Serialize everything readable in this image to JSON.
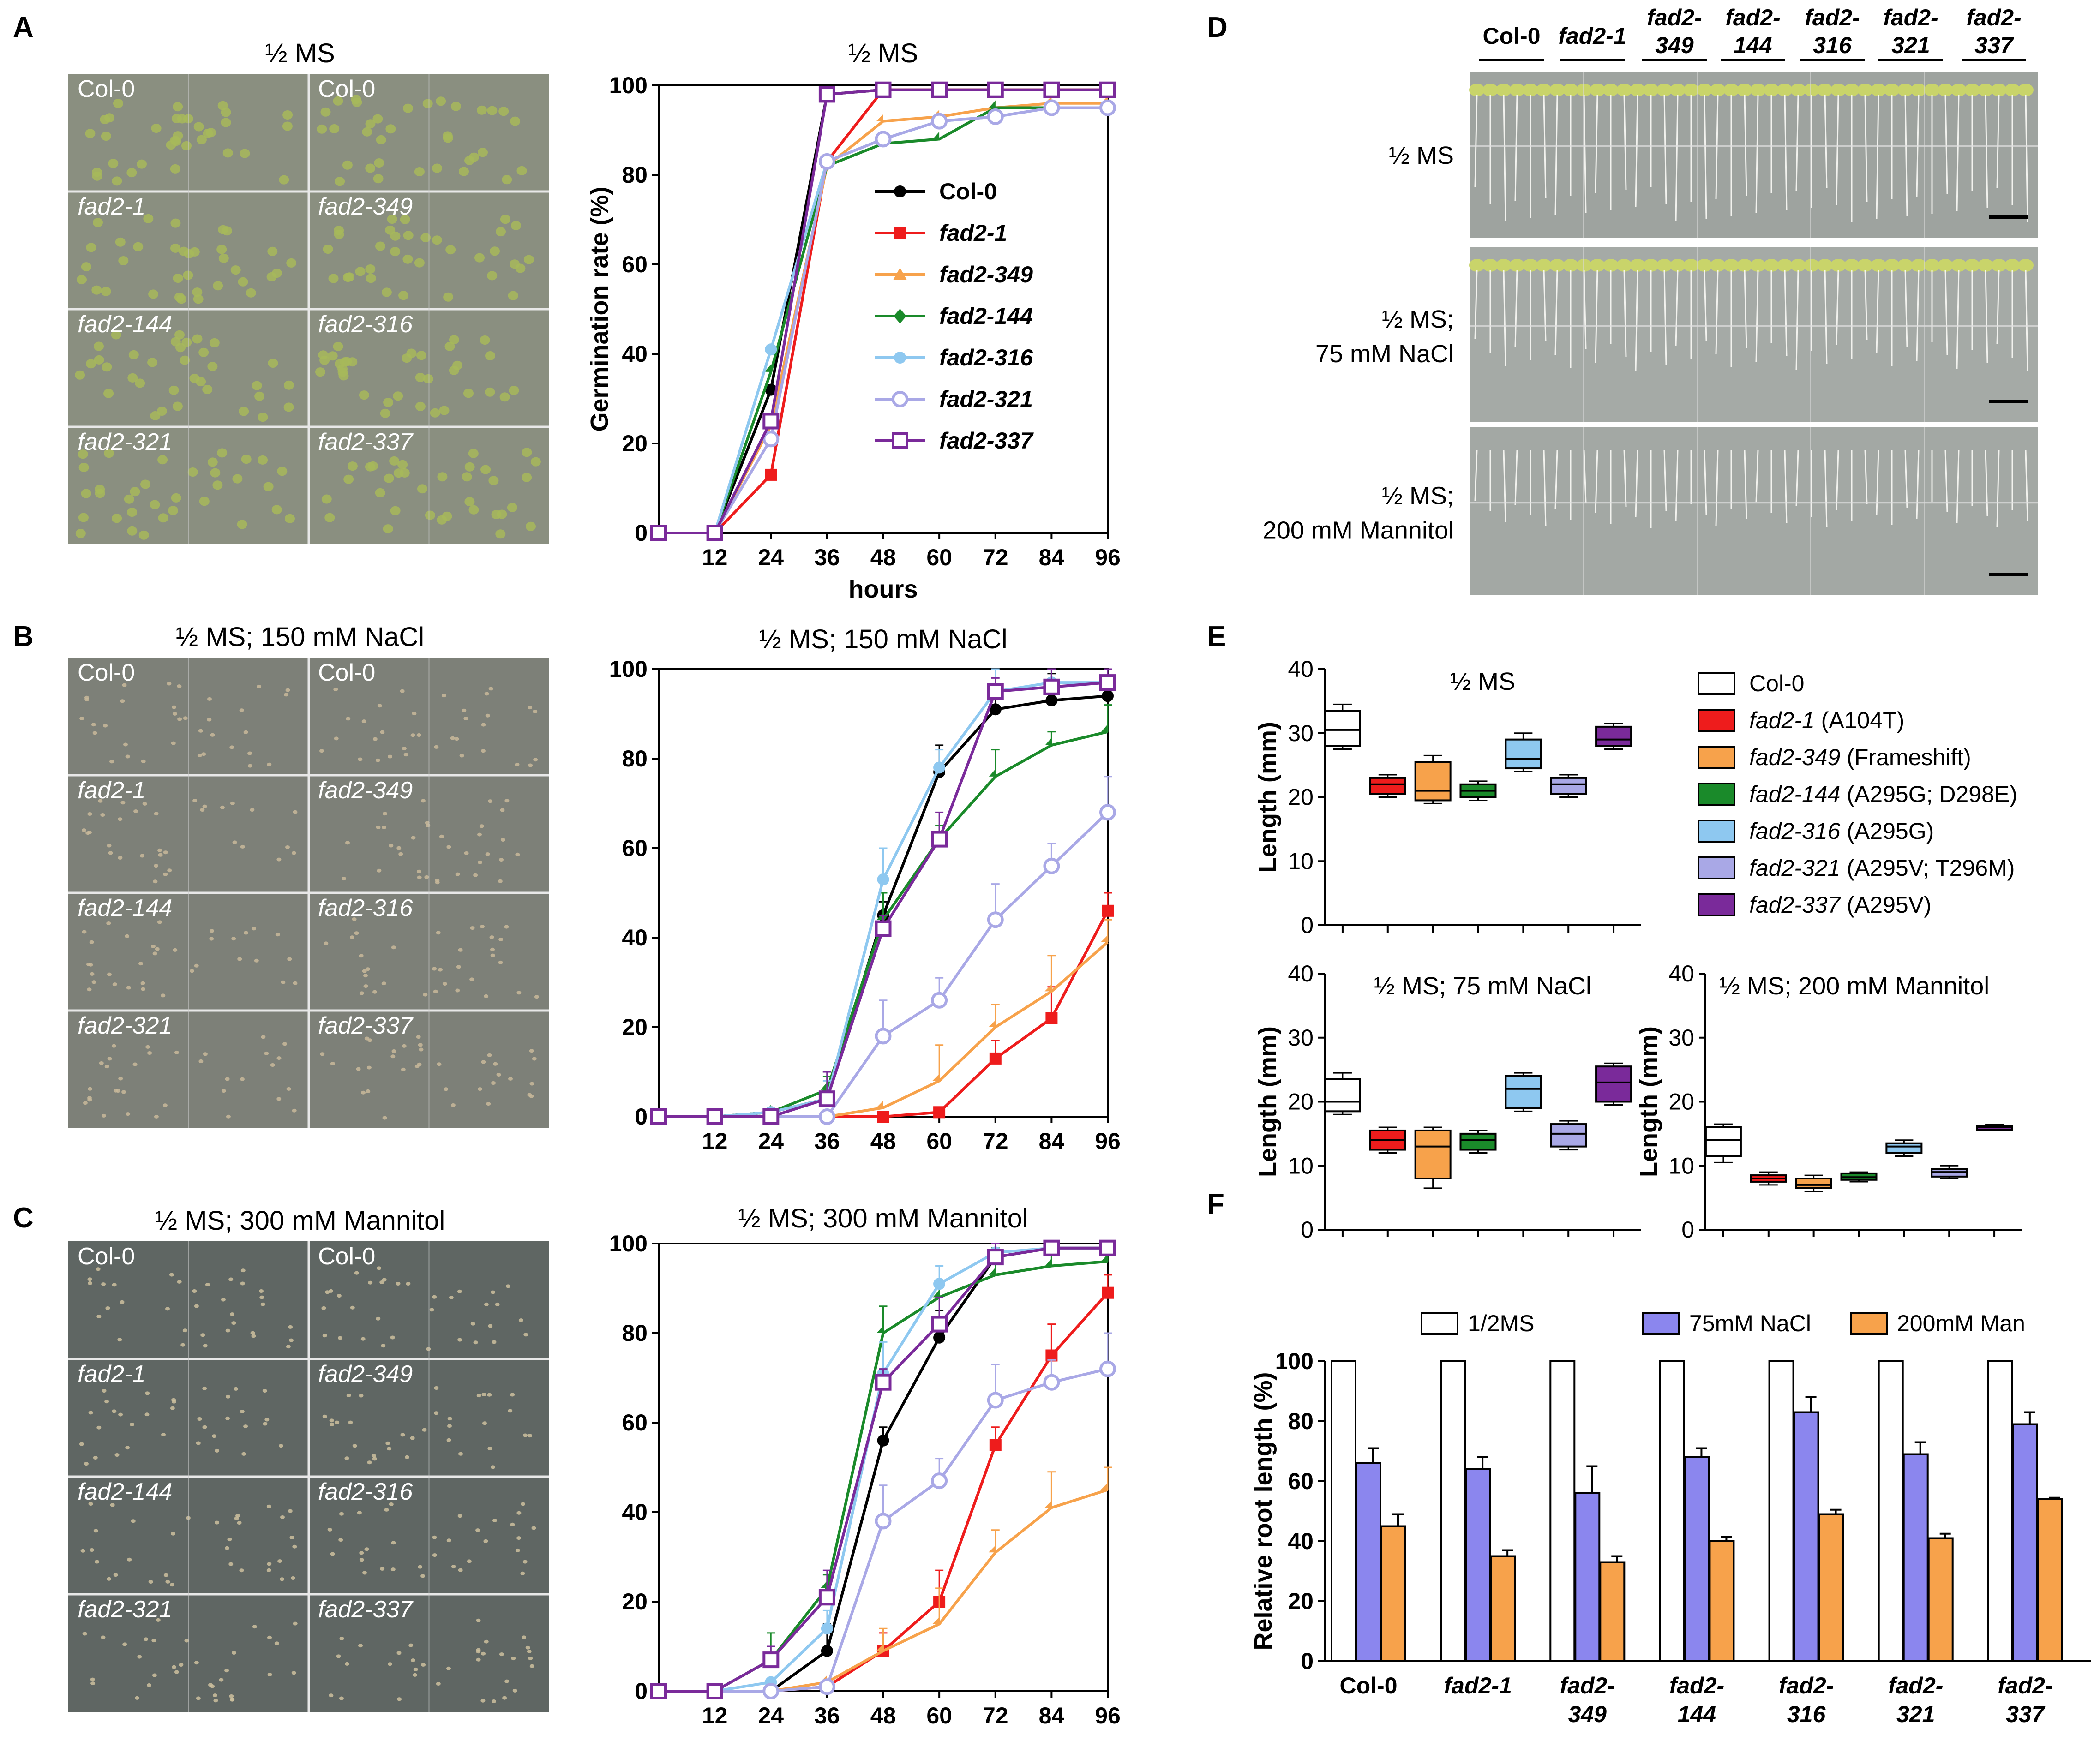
{
  "panel_labels": {
    "A": "A",
    "B": "B",
    "C": "C",
    "D": "D",
    "E": "E",
    "F": "F"
  },
  "photo_panels": [
    {
      "title": "½ MS",
      "bg": "#8a8f80",
      "cells": [
        "Col-0",
        "Col-0",
        "fad2-1",
        "fad2-349",
        "fad2-144",
        "fad2-316",
        "fad2-321",
        "fad2-337"
      ]
    },
    {
      "title": "½ MS; 150 mM NaCl",
      "bg": "#7d8078",
      "cells": [
        "Col-0",
        "Col-0",
        "fad2-1",
        "fad2-349",
        "fad2-144",
        "fad2-316",
        "fad2-321",
        "fad2-337"
      ]
    },
    {
      "title": "½ MS; 300 mM Mannitol",
      "bg": "#5f6663",
      "cells": [
        "Col-0",
        "Col-0",
        "fad2-1",
        "fad2-349",
        "fad2-144",
        "fad2-316",
        "fad2-321",
        "fad2-337"
      ]
    }
  ],
  "colors": {
    "Col-0": "#000000",
    "fad2-1": "#ee1c1c",
    "fad2-349": "#f7a24b",
    "fad2-144": "#1a8a2a",
    "fad2-316": "#8ec8f0",
    "fad2-321": "#a9a8e6",
    "fad2-337": "#7a2a9a",
    "bar_ms": "#ffffff",
    "bar_nacl": "#8b86ee",
    "bar_man": "#f7a24b"
  },
  "chart_data": [
    {
      "type": "line",
      "title": "½ MS",
      "xlabel": "hours",
      "ylabel": "Germination rate (%)",
      "x": [
        0,
        12,
        24,
        36,
        48,
        60,
        72,
        84,
        96
      ],
      "x_ticks": [
        "12",
        "24",
        "36",
        "48",
        "60",
        "72",
        "84",
        "96"
      ],
      "ylim": [
        0,
        100
      ],
      "y_ticks": [
        "0",
        "20",
        "40",
        "60",
        "80",
        "100"
      ],
      "series": [
        {
          "name": "Col-0",
          "marker": "circle",
          "values": [
            0,
            0,
            32,
            98,
            99,
            99,
            99,
            99,
            99
          ]
        },
        {
          "name": "fad2-1",
          "marker": "square",
          "values": [
            0,
            0,
            13,
            83,
            99,
            99,
            99,
            99,
            99
          ]
        },
        {
          "name": "fad2-349",
          "marker": "triangle",
          "values": [
            0,
            0,
            24,
            82,
            92,
            93,
            95,
            96,
            96
          ]
        },
        {
          "name": "fad2-144",
          "marker": "diamond",
          "values": [
            0,
            0,
            36,
            82,
            87,
            88,
            95,
            95,
            95
          ]
        },
        {
          "name": "fad2-316",
          "marker": "circle",
          "values": [
            0,
            0,
            41,
            83,
            88,
            92,
            93,
            95,
            95
          ]
        },
        {
          "name": "fad2-321",
          "marker": "open-circle",
          "values": [
            0,
            0,
            21,
            83,
            88,
            92,
            93,
            95,
            95
          ]
        },
        {
          "name": "fad2-337",
          "marker": "open-square",
          "values": [
            0,
            0,
            25,
            98,
            99,
            99,
            99,
            99,
            99
          ]
        }
      ]
    },
    {
      "type": "line",
      "title": "½ MS; 150 mM NaCl",
      "xlabel": "",
      "ylabel": "",
      "x": [
        0,
        12,
        24,
        36,
        48,
        60,
        72,
        84,
        96
      ],
      "x_ticks": [
        "12",
        "24",
        "36",
        "48",
        "60",
        "72",
        "84",
        "96"
      ],
      "ylim": [
        0,
        100
      ],
      "y_ticks": [
        "0",
        "20",
        "40",
        "60",
        "80",
        "100"
      ],
      "series": [
        {
          "name": "Col-0",
          "marker": "circle",
          "values": [
            0,
            0,
            1,
            4,
            45,
            77,
            91,
            93,
            94
          ]
        },
        {
          "name": "fad2-1",
          "marker": "square",
          "values": [
            0,
            0,
            0,
            0,
            0,
            1,
            13,
            22,
            46
          ]
        },
        {
          "name": "fad2-349",
          "marker": "triangle",
          "values": [
            0,
            0,
            0,
            0,
            2,
            8,
            20,
            28,
            39
          ]
        },
        {
          "name": "fad2-144",
          "marker": "diamond",
          "values": [
            0,
            0,
            1,
            6,
            44,
            62,
            76,
            83,
            86
          ]
        },
        {
          "name": "fad2-316",
          "marker": "circle",
          "values": [
            0,
            0,
            1,
            4,
            53,
            78,
            95,
            97,
            97
          ]
        },
        {
          "name": "fad2-321",
          "marker": "open-circle",
          "values": [
            0,
            0,
            0,
            0,
            18,
            26,
            44,
            56,
            68
          ]
        },
        {
          "name": "fad2-337",
          "marker": "open-square",
          "values": [
            0,
            0,
            0,
            4,
            42,
            62,
            95,
            96,
            97
          ]
        }
      ]
    },
    {
      "type": "line",
      "title": "½ MS; 300 mM Mannitol",
      "xlabel": "",
      "ylabel": "",
      "x": [
        0,
        12,
        24,
        36,
        48,
        60,
        72,
        84,
        96
      ],
      "x_ticks": [
        "12",
        "24",
        "36",
        "48",
        "60",
        "72",
        "84",
        "96"
      ],
      "ylim": [
        0,
        100
      ],
      "y_ticks": [
        "0",
        "20",
        "40",
        "60",
        "80",
        "100"
      ],
      "series": [
        {
          "name": "Col-0",
          "marker": "circle",
          "values": [
            0,
            0,
            0,
            9,
            56,
            79,
            97,
            99,
            99
          ]
        },
        {
          "name": "fad2-1",
          "marker": "square",
          "values": [
            0,
            0,
            0,
            1,
            9,
            20,
            55,
            75,
            89
          ]
        },
        {
          "name": "fad2-349",
          "marker": "triangle",
          "values": [
            0,
            0,
            0,
            2,
            9,
            15,
            31,
            41,
            45
          ]
        },
        {
          "name": "fad2-144",
          "marker": "diamond",
          "values": [
            0,
            0,
            7,
            23,
            80,
            88,
            93,
            95,
            96
          ]
        },
        {
          "name": "fad2-316",
          "marker": "circle",
          "values": [
            0,
            0,
            2,
            14,
            71,
            91,
            98,
            99,
            99
          ]
        },
        {
          "name": "fad2-321",
          "marker": "open-circle",
          "values": [
            0,
            0,
            0,
            1,
            38,
            47,
            65,
            69,
            72
          ]
        },
        {
          "name": "fad2-337",
          "marker": "open-square",
          "values": [
            0,
            0,
            7,
            21,
            69,
            82,
            97,
            99,
            99
          ]
        }
      ]
    },
    {
      "type": "box",
      "title": "½ MS",
      "ylabel": "Length (mm)",
      "ylim": [
        0,
        40
      ],
      "y_ticks": [
        "0",
        "10",
        "20",
        "30",
        "40"
      ],
      "categories": [
        "Col-0",
        "fad2-1",
        "fad2-349",
        "fad2-144",
        "fad2-316",
        "fad2-321",
        "fad2-337"
      ],
      "boxes": [
        {
          "min": 27.5,
          "q1": 28,
          "median": 30.5,
          "q3": 33.5,
          "max": 34.5
        },
        {
          "min": 20,
          "q1": 20.5,
          "median": 22,
          "q3": 23,
          "max": 23.5
        },
        {
          "min": 19,
          "q1": 19.5,
          "median": 21,
          "q3": 25.5,
          "max": 26.5
        },
        {
          "min": 19.5,
          "q1": 20,
          "median": 21,
          "q3": 22,
          "max": 22.5
        },
        {
          "min": 24,
          "q1": 24.5,
          "median": 26,
          "q3": 29,
          "max": 30
        },
        {
          "min": 20,
          "q1": 20.5,
          "median": 22,
          "q3": 23,
          "max": 23.5
        },
        {
          "min": 27.5,
          "q1": 28,
          "median": 29,
          "q3": 31,
          "max": 31.5
        }
      ]
    },
    {
      "type": "box",
      "title": "½ MS; 75 mM NaCl",
      "ylabel": "Length (mm)",
      "ylim": [
        0,
        40
      ],
      "y_ticks": [
        "0",
        "10",
        "20",
        "30",
        "40"
      ],
      "categories": [
        "Col-0",
        "fad2-1",
        "fad2-349",
        "fad2-144",
        "fad2-316",
        "fad2-321",
        "fad2-337"
      ],
      "boxes": [
        {
          "min": 18,
          "q1": 18.5,
          "median": 20,
          "q3": 23.5,
          "max": 24.5
        },
        {
          "min": 12,
          "q1": 12.5,
          "median": 14,
          "q3": 15.5,
          "max": 16
        },
        {
          "min": 6.5,
          "q1": 8,
          "median": 13,
          "q3": 15.5,
          "max": 16
        },
        {
          "min": 12,
          "q1": 12.5,
          "median": 14,
          "q3": 15,
          "max": 15.5
        },
        {
          "min": 18.5,
          "q1": 19,
          "median": 22,
          "q3": 24,
          "max": 24.5
        },
        {
          "min": 12.5,
          "q1": 13,
          "median": 15,
          "q3": 16.5,
          "max": 17
        },
        {
          "min": 19.5,
          "q1": 20,
          "median": 23,
          "q3": 25.5,
          "max": 26
        }
      ]
    },
    {
      "type": "box",
      "title": "½ MS; 200 mM Mannitol",
      "ylabel": "Length (mm)",
      "ylim": [
        0,
        40
      ],
      "y_ticks": [
        "0",
        "10",
        "20",
        "30",
        "40"
      ],
      "categories": [
        "Col-0",
        "fad2-1",
        "fad2-349",
        "fad2-144",
        "fad2-316",
        "fad2-321",
        "fad2-337"
      ],
      "boxes": [
        {
          "min": 10.5,
          "q1": 11.5,
          "median": 14,
          "q3": 16,
          "max": 16.5
        },
        {
          "min": 7,
          "q1": 7.5,
          "median": 8,
          "q3": 8.5,
          "max": 9
        },
        {
          "min": 6,
          "q1": 6.5,
          "median": 7,
          "q3": 8,
          "max": 8.5
        },
        {
          "min": 7.5,
          "q1": 7.8,
          "median": 8.2,
          "q3": 8.8,
          "max": 9
        },
        {
          "min": 11.5,
          "q1": 12,
          "median": 13,
          "q3": 13.5,
          "max": 14
        },
        {
          "min": 8,
          "q1": 8.3,
          "median": 9,
          "q3": 9.5,
          "max": 10
        },
        {
          "min": 15.5,
          "q1": 15.6,
          "median": 16,
          "q3": 16.2,
          "max": 16.4
        }
      ]
    },
    {
      "type": "bar",
      "title": "",
      "ylabel": "Relative root length (%)",
      "ylim": [
        0,
        100
      ],
      "y_ticks": [
        "0",
        "20",
        "40",
        "60",
        "80",
        "100"
      ],
      "categories": [
        "Col-0",
        "fad2-1",
        "fad2-349",
        "fad2-144",
        "fad2-316",
        "fad2-321",
        "fad2-337"
      ],
      "category_lines": [
        [
          "Col-0"
        ],
        [
          "fad2-1"
        ],
        [
          "fad2-",
          "349"
        ],
        [
          "fad2-",
          "144"
        ],
        [
          "fad2-",
          "316"
        ],
        [
          "fad2-",
          "321"
        ],
        [
          "fad2-",
          "337"
        ]
      ],
      "series": [
        {
          "name": "1/2MS",
          "values": [
            100,
            100,
            100,
            100,
            100,
            100,
            100
          ],
          "err": [
            0,
            0,
            0,
            0,
            0,
            0,
            0
          ]
        },
        {
          "name": "75mM NaCl",
          "values": [
            66,
            64,
            56,
            68,
            83,
            69,
            79
          ],
          "err": [
            5,
            4,
            9,
            3,
            5,
            4,
            4
          ]
        },
        {
          "name": "200mM Man",
          "values": [
            45,
            35,
            33,
            40,
            49,
            41,
            54
          ],
          "err": [
            4,
            2,
            2,
            1.5,
            1.5,
            1.5,
            0.5
          ]
        }
      ]
    }
  ],
  "legend_A": [
    "Col-0",
    "fad2-1",
    "fad2-349",
    "fad2-144",
    "fad2-316",
    "fad2-321",
    "fad2-337"
  ],
  "panel_D": {
    "genotypes": [
      [
        "Col-0"
      ],
      [
        "fad2-1"
      ],
      [
        "fad2-",
        "349"
      ],
      [
        "fad2-",
        "144"
      ],
      [
        "fad2-",
        "316"
      ],
      [
        "fad2-",
        "321"
      ],
      [
        "fad2-",
        "337"
      ]
    ],
    "conditions": [
      [
        "½ MS"
      ],
      [
        "½ MS;",
        "75 mM NaCl"
      ],
      [
        "½ MS;",
        "200 mM Mannitol"
      ]
    ]
  },
  "legend_E": [
    {
      "name": "Col-0",
      "note": ""
    },
    {
      "name": "fad2-1",
      "note": " (A104T)"
    },
    {
      "name": "fad2-349",
      "note": " (Frameshift)"
    },
    {
      "name": "fad2-144",
      "note": " (A295G; D298E)"
    },
    {
      "name": "fad2-316",
      "note": " (A295G)"
    },
    {
      "name": "fad2-321",
      "note": " (A295V; T296M)"
    },
    {
      "name": "fad2-337",
      "note": " (A295V)"
    }
  ]
}
